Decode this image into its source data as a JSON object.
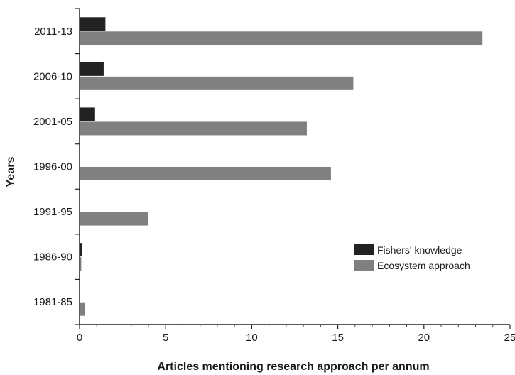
{
  "chart_data": {
    "type": "bar",
    "orientation": "horizontal",
    "categories": [
      "2011-13",
      "2006-10",
      "2001-05",
      "1996-00",
      "1991-95",
      "1986-90",
      "1981-85"
    ],
    "series": [
      {
        "name": "Fishers' knowledge",
        "color": "#222222",
        "values": [
          1.5,
          1.4,
          0.9,
          0,
          0,
          0.15,
          0
        ]
      },
      {
        "name": "Ecosystem approach",
        "color": "#808080",
        "values": [
          23.4,
          15.9,
          13.2,
          14.6,
          4.0,
          0.1,
          0.3
        ]
      }
    ],
    "xlabel": "Articles mentioning research approach per annum",
    "ylabel": "Years",
    "xlim": [
      0,
      25
    ],
    "xticks": [
      "0",
      "5",
      "10",
      "15",
      "20",
      "25"
    ],
    "grid": false,
    "legend_position": "right"
  }
}
